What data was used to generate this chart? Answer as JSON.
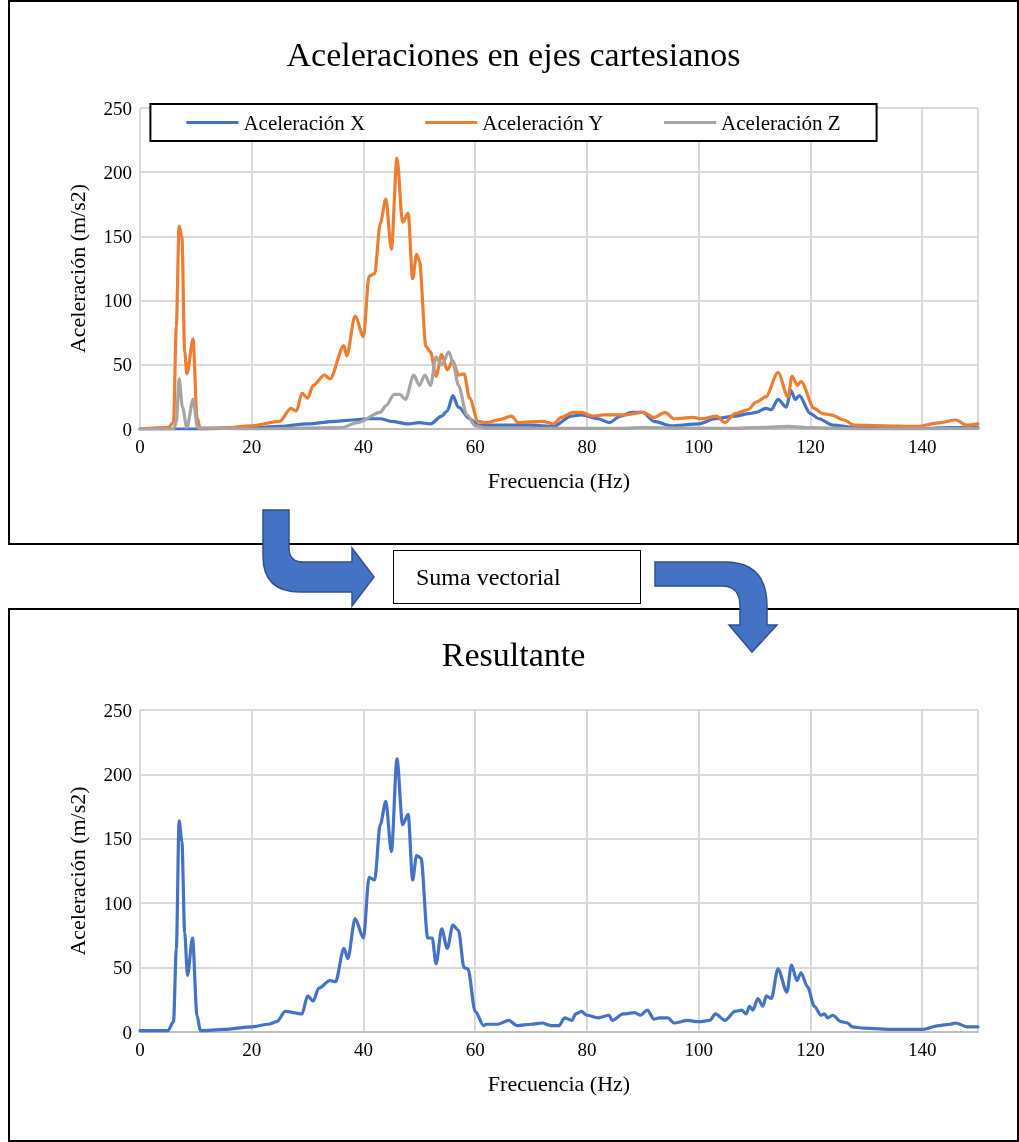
{
  "chart_data": [
    {
      "type": "line",
      "title": "Aceleraciones en ejes cartesianos",
      "xlabel": "Frecuencia (Hz)",
      "ylabel": "Aceleración (m/s2)",
      "xlim": [
        0,
        150
      ],
      "xticks": [
        0,
        20,
        40,
        60,
        80,
        100,
        120,
        140
      ],
      "ylim": [
        0,
        250
      ],
      "yticks": [
        0,
        50,
        100,
        150,
        200,
        250
      ],
      "grid": true,
      "legend": "top",
      "marker": "none",
      "line_style": "solid",
      "annotations": [
        "Suma vectorial"
      ],
      "series": [
        {
          "name": "Aceleración X",
          "color": "#4472c4",
          "x": [
            0,
            10,
            20,
            25,
            30,
            35,
            38,
            41,
            43,
            45,
            48,
            50,
            52,
            54,
            55,
            56,
            57,
            59,
            60.5,
            64,
            70,
            74,
            77.2,
            79,
            82,
            84,
            86,
            88,
            90,
            92,
            95,
            100,
            103,
            106.5,
            109,
            110.3,
            112,
            113,
            114.2,
            115.7,
            116.5,
            117.3,
            118,
            120,
            121.5,
            124,
            128,
            135,
            140,
            145,
            150
          ],
          "values": [
            0,
            0,
            1,
            2,
            4,
            6,
            7,
            8,
            8,
            6,
            4,
            5,
            4,
            10,
            14,
            26,
            17,
            8,
            3,
            3,
            3,
            2,
            10,
            11,
            8,
            5,
            10,
            13,
            13,
            6,
            2.5,
            4,
            8,
            10,
            12,
            13,
            16,
            15,
            23,
            17,
            30,
            23,
            26,
            12,
            8,
            3,
            1,
            0.5,
            0.5,
            1,
            1
          ]
        },
        {
          "name": "Aceleración Y",
          "color": "#ed7d31",
          "x": [
            0,
            5,
            6,
            6.5,
            7,
            7.5,
            8,
            8.4,
            9.5,
            10.2,
            10.8,
            15,
            20,
            25,
            27,
            28,
            29,
            30,
            31,
            33,
            34,
            36.5,
            37,
            38.5,
            40,
            41,
            42,
            43,
            44,
            45,
            46,
            47,
            48,
            48.8,
            49.5,
            50,
            51.2,
            52,
            53,
            54,
            55,
            56,
            57,
            58,
            59,
            60.5,
            62,
            64.5,
            66.5,
            67.7,
            72,
            74,
            75.4,
            77.5,
            79,
            81,
            83,
            86.7,
            90,
            92,
            94,
            95.6,
            99,
            100.5,
            103.2,
            104.7,
            106.5,
            108.8,
            110.3,
            112,
            114.2,
            116,
            116.7,
            117.7,
            118.3,
            120.7,
            122.2,
            123.7,
            126,
            127.8,
            133,
            139,
            143.3,
            146,
            148,
            150
          ],
          "values": [
            0,
            1,
            5,
            80,
            158,
            150,
            60,
            43,
            70,
            9,
            0,
            1,
            2.5,
            6,
            16,
            14,
            28,
            24,
            34,
            42,
            39,
            65,
            57,
            88,
            72,
            119,
            121,
            160,
            179,
            140,
            211,
            161,
            168,
            117,
            136,
            131,
            64,
            60,
            41,
            58,
            46,
            53,
            42,
            43,
            24,
            6,
            5,
            7.5,
            10,
            5,
            6,
            4,
            9,
            13,
            13,
            10,
            11,
            11,
            13,
            9,
            13,
            8,
            9,
            8,
            10,
            5,
            12,
            15,
            21,
            25,
            44,
            25,
            41,
            34,
            37,
            16,
            12,
            11,
            7,
            3,
            2.5,
            2,
            5,
            7,
            3,
            4
          ]
        },
        {
          "name": "Aceleración Z",
          "color": "#a5a5a5",
          "x": [
            0,
            6,
            6.5,
            7,
            7.6,
            8.4,
            9.5,
            10.3,
            20,
            36,
            39,
            43,
            44,
            45.5,
            46.5,
            47.5,
            49,
            50,
            51,
            52,
            53,
            54,
            55.3,
            56,
            57,
            58.5,
            60,
            62,
            85,
            90,
            105,
            110,
            116,
            120,
            130,
            150
          ],
          "values": [
            0,
            0,
            5,
            39,
            17,
            1,
            23,
            1,
            0,
            1,
            5,
            13,
            18,
            27,
            27,
            23,
            42,
            34,
            42,
            34,
            56,
            50,
            60,
            52,
            34,
            11,
            2.5,
            0.5,
            0.5,
            1,
            0.5,
            1,
            2,
            1,
            0,
            0.5
          ]
        }
      ]
    },
    {
      "type": "line",
      "title": "Resultante",
      "xlabel": "Frecuencia (Hz)",
      "ylabel": "Aceleración (m/s2)",
      "xlim": [
        0,
        150
      ],
      "xticks": [
        0,
        20,
        40,
        60,
        80,
        100,
        120,
        140
      ],
      "ylim": [
        0,
        250
      ],
      "yticks": [
        0,
        50,
        100,
        150,
        200,
        250
      ],
      "grid": true,
      "marker": "none",
      "line_style": "solid",
      "series": [
        {
          "color": "#4472c4",
          "x": [
            0,
            5,
            6,
            6.5,
            7,
            7.5,
            8,
            8.5,
            9.4,
            10.2,
            10.8,
            15,
            20,
            23,
            24.5,
            26,
            29,
            30,
            31,
            32,
            34,
            35,
            36.5,
            37.2,
            38.5,
            40,
            41,
            42,
            43,
            44,
            45,
            46,
            47,
            48,
            48.8,
            49.5,
            50.3,
            51.5,
            52.3,
            53,
            54,
            55,
            56,
            57,
            58,
            58.7,
            60,
            61.5,
            62,
            64,
            66,
            67.5,
            70,
            72,
            73.5,
            75,
            76,
            77.3,
            78,
            79,
            80,
            82,
            84,
            84.5,
            86.5,
            88.5,
            89.6,
            90.8,
            92,
            93,
            94.5,
            95.6,
            98,
            100,
            102,
            103,
            104.7,
            106.5,
            107.7,
            108.5,
            109.1,
            109.7,
            110.6,
            111.5,
            112.1,
            113,
            114.2,
            115.8,
            116.6,
            117.6,
            118.3,
            119.5,
            120.7,
            121.9,
            122.5,
            123.1,
            124,
            125.5,
            126.6,
            127.5,
            129.6,
            135,
            140,
            143,
            145,
            146,
            148,
            150
          ],
          "values": [
            1,
            1,
            8,
            64,
            164,
            148,
            77,
            44,
            73,
            13,
            1,
            2,
            4,
            6,
            8,
            16,
            14,
            28,
            24,
            34,
            40,
            39,
            65,
            57,
            88,
            73,
            120,
            118,
            161,
            179,
            140,
            212,
            161,
            169,
            118,
            137,
            135,
            73,
            73,
            53,
            80,
            65,
            83,
            79,
            50,
            49,
            16,
            5,
            6,
            6,
            9,
            5,
            6,
            7,
            5,
            5,
            11,
            9,
            14,
            16,
            13,
            11,
            13,
            9,
            14,
            15,
            13,
            17,
            10,
            11,
            11,
            7,
            9,
            8,
            9,
            14,
            9,
            16,
            17,
            14,
            20,
            17,
            26,
            20,
            28,
            26,
            49,
            31,
            52,
            40,
            46,
            35,
            20,
            13,
            14,
            11,
            13,
            8,
            7,
            4,
            3,
            2,
            2,
            5,
            6,
            7,
            4,
            4
          ]
        }
      ]
    }
  ]
}
